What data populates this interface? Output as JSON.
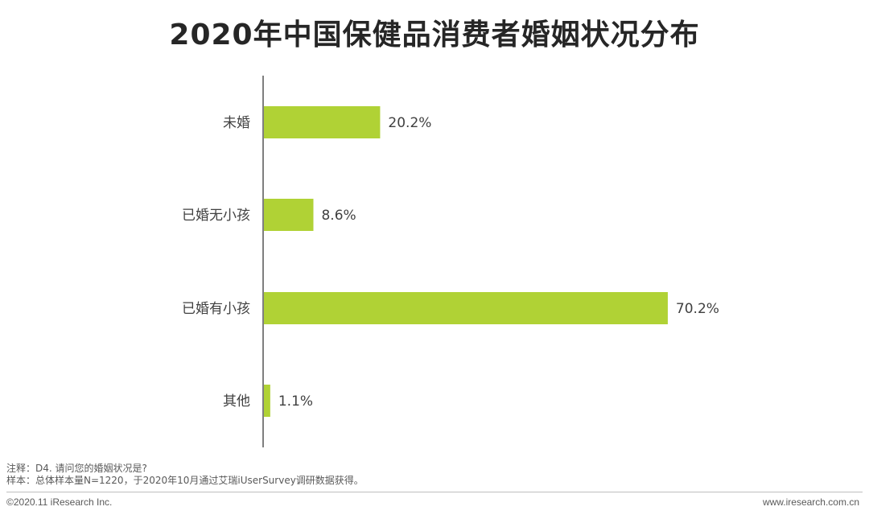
{
  "chart_data": {
    "type": "bar",
    "orientation": "horizontal",
    "title": "2020年中国保健品消费者婚姻状况分布",
    "categories": [
      "未婚",
      "已婚无小孩",
      "已婚有小孩",
      "其他"
    ],
    "values": [
      20.2,
      8.6,
      70.2,
      1.1
    ],
    "value_labels": [
      "20.2%",
      "8.6%",
      "70.2%",
      "1.1%"
    ],
    "unit": "%",
    "bar_color": "#b0d235",
    "xlim": [
      0,
      100
    ],
    "grid": false,
    "legend": "none"
  },
  "notes": {
    "note": "注释：D4. 请问您的婚姻状况是?",
    "sample": "样本：总体样本量N=1220，于2020年10月通过艾瑞iUserSurvey调研数据获得。"
  },
  "footer": {
    "copyright": "©2020.11 iResearch Inc.",
    "website": "www.iresearch.com.cn"
  }
}
